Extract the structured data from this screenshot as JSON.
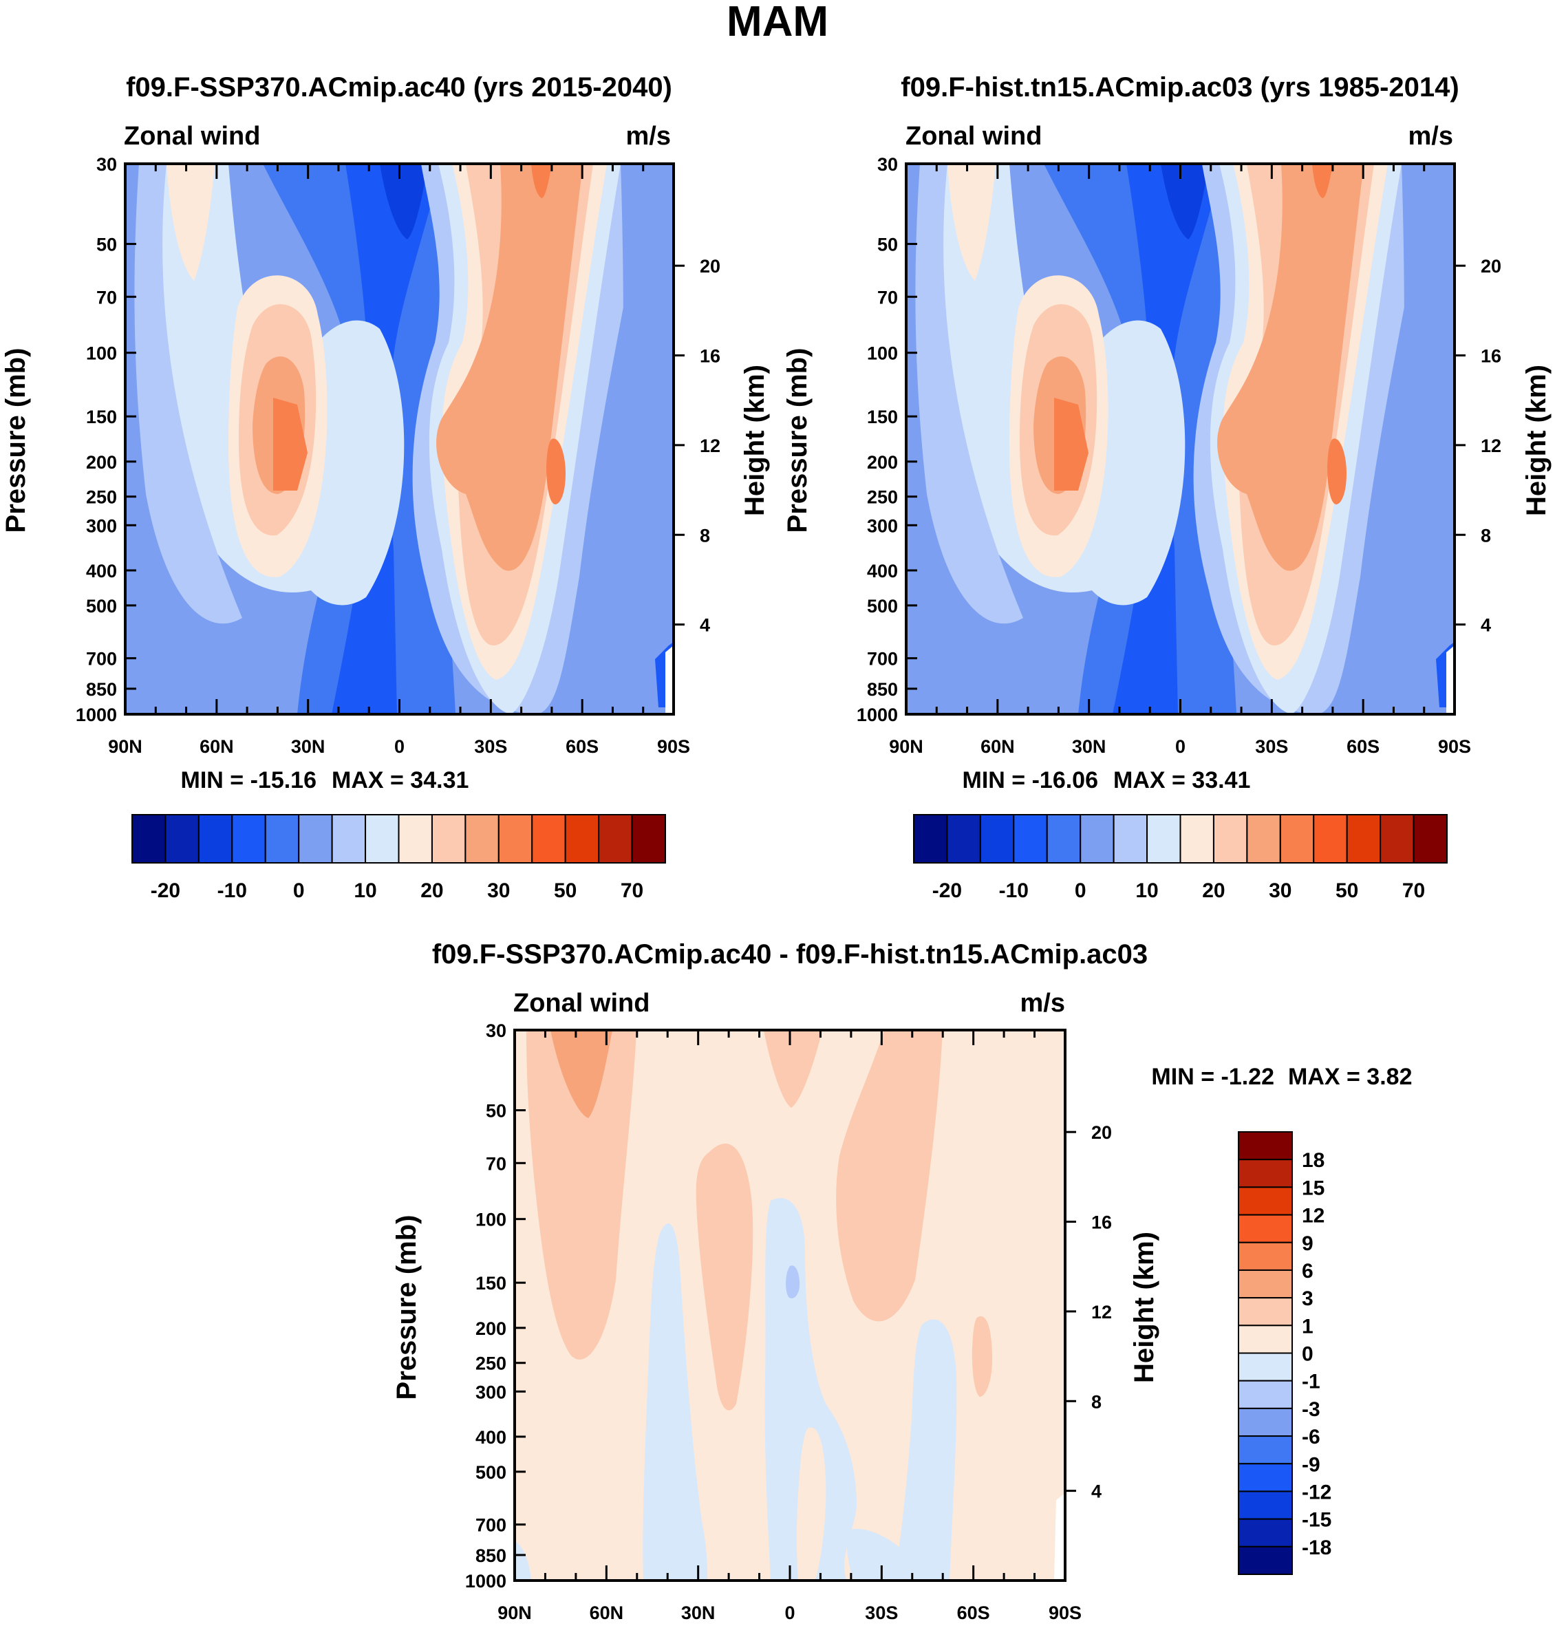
{
  "figure": {
    "title": "MAM"
  },
  "colors": {
    "abs": [
      "#000d82",
      "#0623b2",
      "#0b3fe0",
      "#1a59f7",
      "#3f78f2",
      "#7c9ff2",
      "#b2c9f9",
      "#d8e8fb",
      "#fde9d9",
      "#fbcab0",
      "#f8a47a",
      "#f8804c",
      "#f85a25",
      "#e23b08",
      "#b9230a",
      "#800000"
    ],
    "diff": [
      "#000d82",
      "#0623b2",
      "#0b3fe0",
      "#1a59f7",
      "#3f78f2",
      "#7c9ff2",
      "#b2c9f9",
      "#d8e8fb",
      "#fde9d9",
      "#fbcab0",
      "#f8a47a",
      "#f8804c",
      "#f85a25",
      "#e23b08",
      "#b9230a",
      "#800000"
    ]
  },
  "chart_data": [
    {
      "type": "heatmap",
      "title": "f09.F-SSP370.ACmip.ac40 (yrs 2015-2040)",
      "left_string": "Zonal wind",
      "right_string": "m/s",
      "ylabel": "Pressure (mb)",
      "y2label": "Height (km)",
      "x_tick_labels": [
        "90N",
        "60N",
        "30N",
        "0",
        "30S",
        "60S",
        "90S"
      ],
      "x_ticks": [
        90,
        60,
        30,
        0,
        -30,
        -60,
        -90
      ],
      "y_ticks": [
        30,
        50,
        70,
        100,
        150,
        200,
        250,
        300,
        400,
        500,
        700,
        850,
        1000
      ],
      "y2_ticks": [
        20,
        16,
        12,
        8,
        4
      ],
      "ylim": [
        1000,
        30
      ],
      "min_label": "MIN = -15.16",
      "max_label": "MAX =  34.31",
      "colorbar_labels": [
        "-20",
        "-10",
        "0",
        "10",
        "20",
        "30",
        "50",
        "70"
      ]
    },
    {
      "type": "heatmap",
      "title": "f09.F-hist.tn15.ACmip.ac03 (yrs 1985-2014)",
      "left_string": "Zonal wind",
      "right_string": "m/s",
      "ylabel": "Pressure (mb)",
      "y2label": "Height (km)",
      "x_tick_labels": [
        "90N",
        "60N",
        "30N",
        "0",
        "30S",
        "60S",
        "90S"
      ],
      "x_ticks": [
        90,
        60,
        30,
        0,
        -30,
        -60,
        -90
      ],
      "y_ticks": [
        30,
        50,
        70,
        100,
        150,
        200,
        250,
        300,
        400,
        500,
        700,
        850,
        1000
      ],
      "y2_ticks": [
        20,
        16,
        12,
        8,
        4
      ],
      "ylim": [
        1000,
        30
      ],
      "min_label": "MIN = -16.06",
      "max_label": "MAX =  33.41",
      "colorbar_labels": [
        "-20",
        "-10",
        "0",
        "10",
        "20",
        "30",
        "50",
        "70"
      ]
    },
    {
      "type": "heatmap",
      "title": "f09.F-SSP370.ACmip.ac40 - f09.F-hist.tn15.ACmip.ac03",
      "left_string": "Zonal wind",
      "right_string": "m/s",
      "ylabel": "Pressure (mb)",
      "y2label": "Height (km)",
      "x_tick_labels": [
        "90N",
        "60N",
        "30N",
        "0",
        "30S",
        "60S",
        "90S"
      ],
      "x_ticks": [
        90,
        60,
        30,
        0,
        -30,
        -60,
        -90
      ],
      "y_ticks": [
        30,
        50,
        70,
        100,
        150,
        200,
        250,
        300,
        400,
        500,
        700,
        850,
        1000
      ],
      "y2_ticks": [
        20,
        16,
        12,
        8,
        4
      ],
      "ylim": [
        1000,
        30
      ],
      "min_label": "MIN =  -1.22",
      "max_label": "MAX =   3.82",
      "colorbar_labels": [
        "18",
        "15",
        "12",
        "9",
        "6",
        "3",
        "1",
        "0",
        "-1",
        "-3",
        "-6",
        "-9",
        "-12",
        "-15",
        "-18"
      ]
    }
  ]
}
